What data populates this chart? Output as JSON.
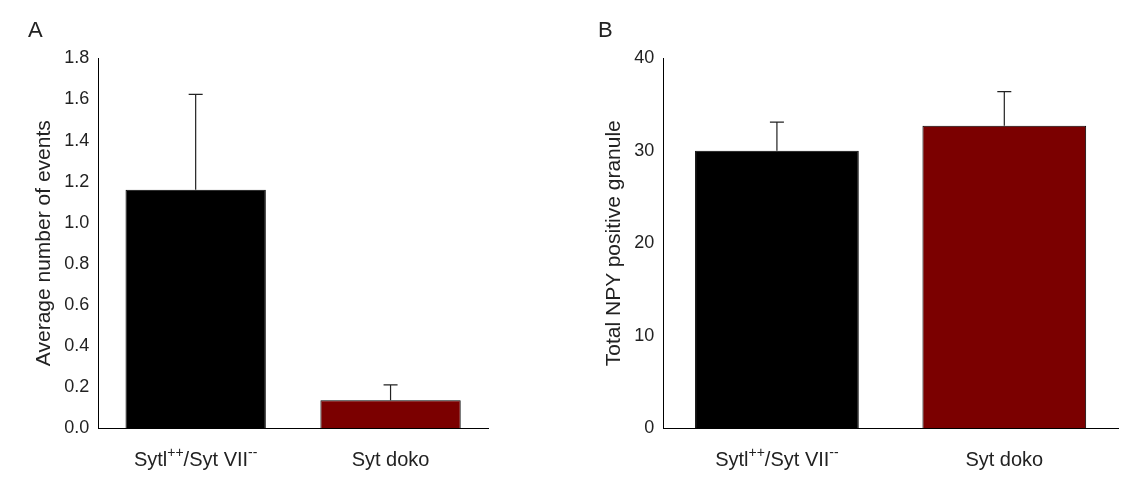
{
  "chart_data": [
    {
      "type": "bar",
      "title": "A",
      "ylabel": "Average number of events",
      "categories": [
        "Sytl$^{++}$/Syt VII$^{--}$",
        "Syt doko"
      ],
      "values": [
        1.16,
        0.135
      ],
      "errors": [
        0.465,
        0.075
      ],
      "colors": [
        "#000000",
        "#7b0000"
      ],
      "ylim": [
        0,
        1.8
      ],
      "yticks": [
        {
          "value": 0,
          "label": "0.0"
        },
        {
          "value": 0.2,
          "label": "0.2"
        },
        {
          "value": 0.4,
          "label": "0.4"
        },
        {
          "value": 0.6,
          "label": "0.6"
        },
        {
          "value": 0.8,
          "label": "0.8"
        },
        {
          "value": 1,
          "label": "1.0"
        },
        {
          "value": 1.2,
          "label": "1.2"
        },
        {
          "value": 1.4,
          "label": "1.4"
        },
        {
          "value": 1.6,
          "label": "1.6"
        },
        {
          "value": 1.8,
          "label": "1.8"
        }
      ],
      "grid": false,
      "legend": false
    },
    {
      "type": "bar",
      "title": "B",
      "ylabel": "Total NPY positive granule",
      "categories": [
        "Sytl$^{++}$/Syt VII$^{--}$",
        "Syt doko"
      ],
      "values": [
        30,
        32.7
      ],
      "errors": [
        3.1,
        3.7
      ],
      "colors": [
        "#000000",
        "#7b0000"
      ],
      "ylim": [
        0,
        40
      ],
      "yticks": [
        0,
        10,
        20,
        30,
        40
      ],
      "grid": false,
      "legend": false
    }
  ]
}
